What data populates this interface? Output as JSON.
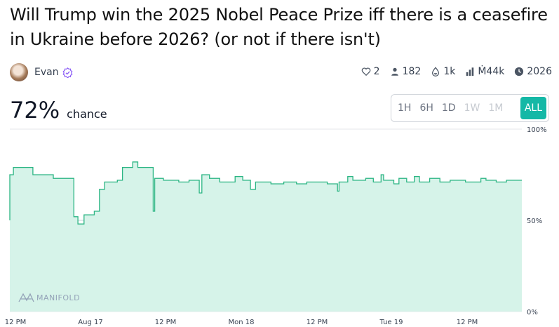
{
  "market": {
    "title": "Will Trump win the 2025 Nobel Peace Prize iff there is a ceasefire in Ukraine before 2026? (or not if there isn't)",
    "author": "Evan",
    "likes": "2",
    "traders": "182",
    "liquidity": "1k",
    "volume": "Ṁ44k",
    "close": "2026",
    "probability": "72%",
    "probability_label": "chance"
  },
  "time_ranges": [
    {
      "label": "1H",
      "state": "enabled"
    },
    {
      "label": "6H",
      "state": "enabled"
    },
    {
      "label": "1D",
      "state": "enabled"
    },
    {
      "label": "1W",
      "state": "disabled"
    },
    {
      "label": "1M",
      "state": "disabled"
    },
    {
      "label": "ALL",
      "state": "active"
    }
  ],
  "watermark": "MANIFOLD",
  "colors": {
    "accent": "#14b8a6",
    "line": "#2bb583",
    "fill": "#d6f3e9",
    "verified": "#8b5cf6"
  },
  "chart_data": {
    "type": "area",
    "y_ticks": [
      "100%",
      "50%",
      "0%"
    ],
    "ylim": [
      0,
      100
    ],
    "x_ticks": [
      "12 PM",
      "Aug 17",
      "12 PM",
      "Mon 18",
      "12 PM",
      "Tue 19",
      "12 PM"
    ],
    "grid": true,
    "points": [
      [
        0.0,
        50
      ],
      [
        0.0,
        75
      ],
      [
        0.7,
        75
      ],
      [
        0.7,
        79
      ],
      [
        4.5,
        79
      ],
      [
        4.5,
        75
      ],
      [
        8.5,
        75
      ],
      [
        8.5,
        73
      ],
      [
        12.5,
        73
      ],
      [
        12.5,
        52
      ],
      [
        13.3,
        52
      ],
      [
        13.3,
        48
      ],
      [
        14.5,
        48
      ],
      [
        14.5,
        53
      ],
      [
        16.5,
        53
      ],
      [
        16.5,
        55
      ],
      [
        17.5,
        55
      ],
      [
        17.5,
        67
      ],
      [
        18.5,
        67
      ],
      [
        18.5,
        71
      ],
      [
        21.0,
        71
      ],
      [
        21.0,
        72
      ],
      [
        22.0,
        72
      ],
      [
        22.0,
        79
      ],
      [
        24.0,
        79
      ],
      [
        24.0,
        82
      ],
      [
        25.0,
        82
      ],
      [
        25.0,
        79
      ],
      [
        28.0,
        79
      ],
      [
        28.0,
        55
      ],
      [
        28.3,
        55
      ],
      [
        28.3,
        73
      ],
      [
        30.0,
        73
      ],
      [
        30.0,
        72
      ],
      [
        33.0,
        72
      ],
      [
        33.0,
        71
      ],
      [
        35.0,
        71
      ],
      [
        35.0,
        72
      ],
      [
        37.0,
        72
      ],
      [
        37.0,
        65
      ],
      [
        37.5,
        65
      ],
      [
        37.5,
        75
      ],
      [
        39.0,
        75
      ],
      [
        39.0,
        73
      ],
      [
        41.0,
        73
      ],
      [
        41.0,
        71
      ],
      [
        44.0,
        71
      ],
      [
        44.0,
        74
      ],
      [
        45.5,
        74
      ],
      [
        45.5,
        72
      ],
      [
        47.0,
        72
      ],
      [
        47.0,
        67
      ],
      [
        48.0,
        67
      ],
      [
        48.0,
        71
      ],
      [
        51.0,
        71
      ],
      [
        51.0,
        70
      ],
      [
        53.5,
        70
      ],
      [
        53.5,
        71
      ],
      [
        56.0,
        71
      ],
      [
        56.0,
        70
      ],
      [
        58.0,
        70
      ],
      [
        58.0,
        71
      ],
      [
        62.0,
        71
      ],
      [
        62.0,
        70
      ],
      [
        64.0,
        70
      ],
      [
        64.0,
        66
      ],
      [
        64.3,
        66
      ],
      [
        64.3,
        71
      ],
      [
        66.0,
        71
      ],
      [
        66.0,
        74
      ],
      [
        67.0,
        74
      ],
      [
        67.0,
        72
      ],
      [
        69.5,
        72
      ],
      [
        69.5,
        73
      ],
      [
        71.0,
        73
      ],
      [
        71.0,
        71
      ],
      [
        72.5,
        71
      ],
      [
        72.5,
        75
      ],
      [
        73.0,
        75
      ],
      [
        73.0,
        72
      ],
      [
        75.0,
        72
      ],
      [
        75.0,
        70
      ],
      [
        76.0,
        70
      ],
      [
        76.0,
        73
      ],
      [
        77.5,
        73
      ],
      [
        77.5,
        71
      ],
      [
        79.0,
        71
      ],
      [
        79.0,
        74
      ],
      [
        80.0,
        74
      ],
      [
        80.0,
        71
      ],
      [
        82.0,
        71
      ],
      [
        82.0,
        73
      ],
      [
        84.0,
        73
      ],
      [
        84.0,
        71
      ],
      [
        86.0,
        71
      ],
      [
        86.0,
        72
      ],
      [
        89.0,
        72
      ],
      [
        89.0,
        71
      ],
      [
        92.0,
        71
      ],
      [
        92.0,
        73
      ],
      [
        93.0,
        73
      ],
      [
        93.0,
        72
      ],
      [
        95.0,
        72
      ],
      [
        95.0,
        71
      ],
      [
        97.0,
        71
      ],
      [
        97.0,
        72
      ],
      [
        100.0,
        72
      ]
    ]
  }
}
